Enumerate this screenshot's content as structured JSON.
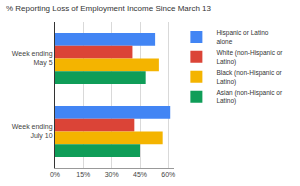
{
  "chart_data": {
    "type": "bar",
    "orientation": "horizontal",
    "title": "% Reporting Loss of Employment Income Since March 13",
    "categories": [
      "Week ending May 5",
      "Week ending July 10"
    ],
    "series": [
      {
        "name": "Hispanic or Latino alone",
        "color": "#4285f4",
        "values": [
          53,
          61
        ]
      },
      {
        "name": "White (non-Hispanic or Latino)",
        "color": "#db4437",
        "values": [
          41,
          42
        ]
      },
      {
        "name": "Black (non-Hispanic or Latino)",
        "color": "#f4b400",
        "values": [
          55,
          57
        ]
      },
      {
        "name": "Asian (non-Hispanic or Latino)",
        "color": "#0f9d58",
        "values": [
          48,
          45
        ]
      }
    ],
    "xlim": [
      0,
      63
    ],
    "xticks": [
      {
        "value": 0,
        "label": "0%"
      },
      {
        "value": 15,
        "label": "15%"
      },
      {
        "value": 30,
        "label": "30%"
      },
      {
        "value": 45,
        "label": "45%"
      },
      {
        "value": 60,
        "label": "60%"
      }
    ],
    "grid": true,
    "legend": "right"
  }
}
